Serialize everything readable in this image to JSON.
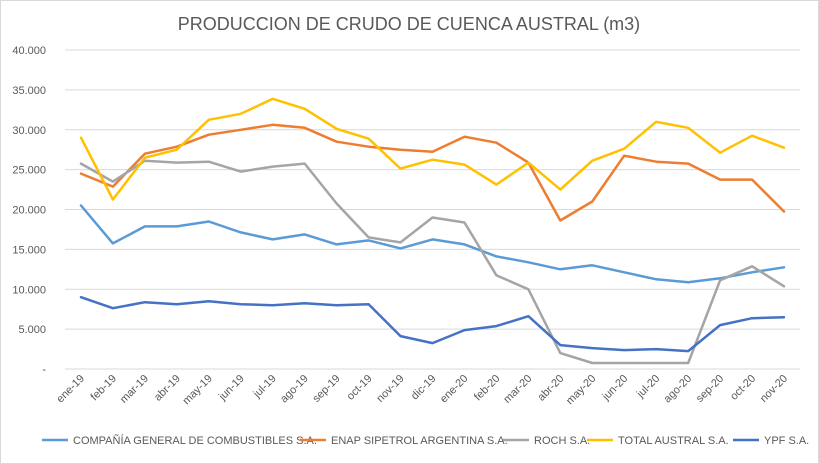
{
  "chart_data": {
    "type": "line",
    "title": "PRODUCCION DE CRUDO DE CUENCA AUSTRAL (m3)",
    "xlabel": "",
    "ylabel": "",
    "ylim": [
      0,
      40000
    ],
    "yticks": [
      0,
      5000,
      10000,
      15000,
      20000,
      25000,
      30000,
      35000,
      40000
    ],
    "ytick_labels": [
      "-",
      "5.000",
      "10.000",
      "15.000",
      "20.000",
      "25.000",
      "30.000",
      "35.000",
      "40.000"
    ],
    "grid": true,
    "legend_position": "bottom",
    "categories": [
      "ene-19",
      "feb-19",
      "mar-19",
      "abr-19",
      "may-19",
      "jun-19",
      "jul-19",
      "ago-19",
      "sep-19",
      "oct-19",
      "nov-19",
      "dic-19",
      "ene-20",
      "feb-20",
      "mar-20",
      "abr-20",
      "may-20",
      "jun-20",
      "jul-20",
      "ago-20",
      "sep-20",
      "oct-20",
      "nov-20"
    ],
    "series": [
      {
        "name": "COMPAÑÍA GENERAL DE COMBUSTIBLES S.A.",
        "color": "#5B9BD5",
        "values": [
          20500,
          15750,
          17875,
          17875,
          18500,
          17125,
          16250,
          16875,
          15625,
          16125,
          15125,
          16250,
          15625,
          14125,
          13375,
          12500,
          13000,
          12125,
          11250,
          10875,
          11375,
          12125,
          12750
        ]
      },
      {
        "name": "ENAP SIPETROL ARGENTINA S.A.",
        "color": "#ED7D31",
        "values": [
          24500,
          22875,
          27000,
          27875,
          29375,
          30000,
          30625,
          30250,
          28500,
          27875,
          27500,
          27250,
          29125,
          28375,
          25875,
          18625,
          21000,
          26750,
          26000,
          25750,
          23750,
          23750,
          19750
        ]
      },
      {
        "name": "ROCH S.A.",
        "color": "#A5A5A5",
        "values": [
          25750,
          23500,
          26125,
          25875,
          26000,
          24750,
          25375,
          25750,
          20750,
          16500,
          15875,
          19000,
          18375,
          11750,
          10000,
          2000,
          750,
          750,
          750,
          750,
          11125,
          12875,
          10375
        ]
      },
      {
        "name": "TOTAL AUSTRAL S.A.",
        "color": "#FFC000",
        "values": [
          29000,
          21250,
          26500,
          27500,
          31250,
          32000,
          33875,
          32625,
          30125,
          28875,
          25125,
          26250,
          25625,
          23125,
          25875,
          22500,
          26125,
          27625,
          31000,
          30250,
          27125,
          29250,
          27750
        ]
      },
      {
        "name": "YPF S.A.",
        "color": "#4472C4",
        "values": [
          9000,
          7625,
          8375,
          8125,
          8500,
          8125,
          8000,
          8250,
          8000,
          8125,
          4125,
          3250,
          4875,
          5375,
          6625,
          3000,
          2625,
          2375,
          2500,
          2250,
          5500,
          6375,
          6500
        ]
      }
    ]
  }
}
